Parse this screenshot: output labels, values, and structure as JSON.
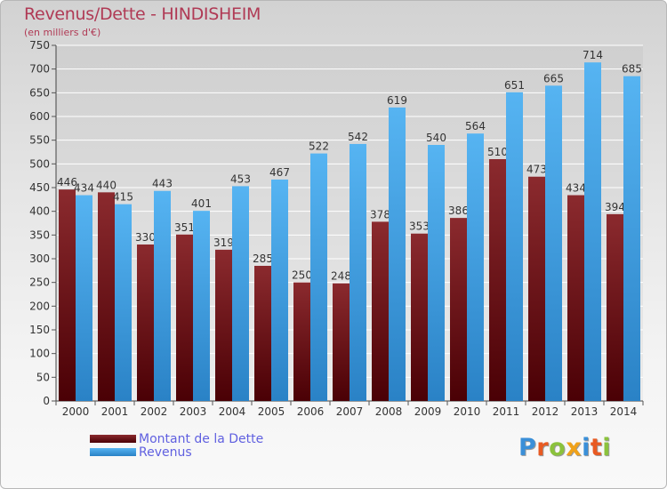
{
  "title": "Revenus/Dette - HINDISHEIM",
  "subtitle": "(en milliers d'€)",
  "logo": "Proxiti",
  "colors": {
    "dette": "#5e0a12",
    "revenus": "#3a96dc",
    "title": "#b03a55",
    "legend_text": "#6060e0"
  },
  "legend": [
    {
      "label": "Montant de la Dette",
      "color": "#6e1318"
    },
    {
      "label": "Revenus",
      "color": "#3a96dc"
    }
  ],
  "chart_data": {
    "type": "bar",
    "title": "Revenus/Dette - HINDISHEIM",
    "subtitle": "(en milliers d'€)",
    "categories": [
      "2000",
      "2001",
      "2002",
      "2003",
      "2004",
      "2005",
      "2006",
      "2007",
      "2008",
      "2009",
      "2010",
      "2011",
      "2012",
      "2013",
      "2014"
    ],
    "series": [
      {
        "name": "Montant de la Dette",
        "values": [
          446,
          440,
          330,
          351,
          319,
          285,
          250,
          248,
          378,
          353,
          386,
          510,
          473,
          434,
          394
        ]
      },
      {
        "name": "Revenus",
        "values": [
          434,
          415,
          443,
          401,
          453,
          467,
          522,
          542,
          619,
          540,
          564,
          651,
          665,
          714,
          685
        ]
      }
    ],
    "yticks": [
      0,
      50,
      100,
      150,
      200,
      250,
      300,
      350,
      400,
      450,
      500,
      550,
      600,
      650,
      700,
      750
    ],
    "ylim": [
      0,
      750
    ],
    "grid": true,
    "legend_position": "bottom-left"
  }
}
